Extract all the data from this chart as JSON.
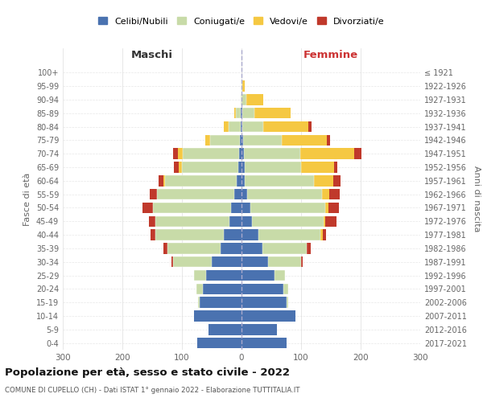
{
  "age_groups": [
    "100+",
    "95-99",
    "90-94",
    "85-89",
    "80-84",
    "75-79",
    "70-74",
    "65-69",
    "60-64",
    "55-59",
    "50-54",
    "45-49",
    "40-44",
    "35-39",
    "30-34",
    "25-29",
    "20-24",
    "15-19",
    "10-14",
    "5-9",
    "0-4"
  ],
  "birth_years": [
    "≤ 1921",
    "1922-1926",
    "1927-1931",
    "1932-1936",
    "1937-1941",
    "1942-1946",
    "1947-1951",
    "1952-1956",
    "1957-1961",
    "1962-1966",
    "1967-1971",
    "1972-1976",
    "1977-1981",
    "1982-1986",
    "1987-1991",
    "1992-1996",
    "1997-2001",
    "2002-2006",
    "2007-2011",
    "2012-2016",
    "2017-2021"
  ],
  "maschi_cel": [
    0,
    0,
    0,
    1,
    2,
    3,
    4,
    5,
    8,
    12,
    18,
    20,
    30,
    35,
    50,
    60,
    65,
    70,
    80,
    55,
    75
  ],
  "maschi_con": [
    0,
    0,
    2,
    8,
    20,
    50,
    95,
    95,
    120,
    130,
    130,
    125,
    115,
    90,
    65,
    20,
    10,
    3,
    0,
    0,
    0
  ],
  "maschi_ved": [
    0,
    0,
    0,
    3,
    8,
    8,
    8,
    5,
    3,
    0,
    0,
    0,
    0,
    0,
    0,
    0,
    0,
    0,
    0,
    0,
    0
  ],
  "maschi_div": [
    0,
    0,
    0,
    0,
    0,
    0,
    8,
    8,
    8,
    12,
    18,
    10,
    8,
    6,
    3,
    0,
    0,
    0,
    0,
    0,
    0
  ],
  "femmine_nub": [
    0,
    0,
    0,
    1,
    2,
    3,
    4,
    5,
    6,
    10,
    15,
    18,
    28,
    35,
    45,
    55,
    70,
    75,
    90,
    60,
    75
  ],
  "femmine_con": [
    0,
    2,
    8,
    20,
    35,
    65,
    95,
    95,
    115,
    125,
    125,
    120,
    105,
    75,
    55,
    18,
    8,
    3,
    0,
    0,
    0
  ],
  "femmine_ved": [
    0,
    3,
    28,
    62,
    75,
    75,
    90,
    55,
    33,
    12,
    6,
    3,
    3,
    0,
    0,
    0,
    0,
    0,
    0,
    0,
    0
  ],
  "femmine_div": [
    0,
    0,
    0,
    0,
    6,
    6,
    12,
    6,
    12,
    18,
    18,
    18,
    6,
    6,
    3,
    0,
    0,
    0,
    0,
    0,
    0
  ],
  "colors": {
    "celibi_nubili": "#4a72b0",
    "coniugati": "#c8dba8",
    "vedovi": "#f5c842",
    "divorziati": "#c0392b"
  },
  "title": "Popolazione per età, sesso e stato civile - 2022",
  "subtitle": "COMUNE DI CUPELLO (CH) - Dati ISTAT 1° gennaio 2022 - Elaborazione TUTTITALIA.IT",
  "xlabel_left": "Maschi",
  "xlabel_right": "Femmine",
  "ylabel_left": "Fasce di età",
  "ylabel_right": "Anni di nascita",
  "xlim": 300,
  "background_color": "#ffffff",
  "grid_color": "#cccccc"
}
